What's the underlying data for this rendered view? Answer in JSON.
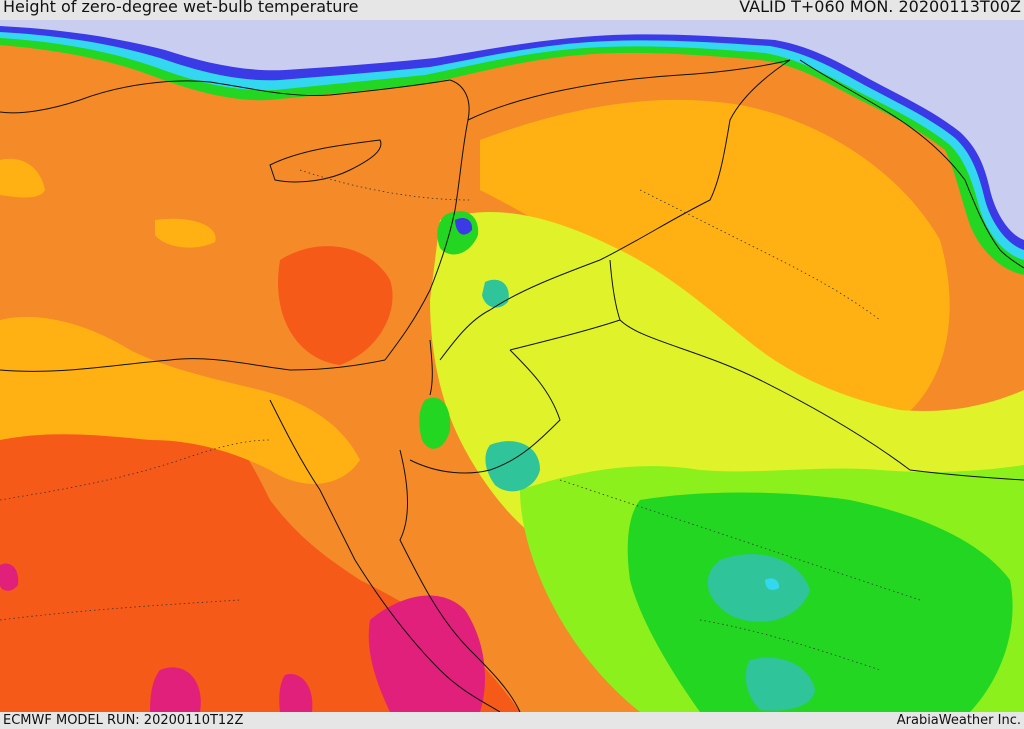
{
  "header": {
    "title": "Height of zero-degree wet-bulb temperature",
    "valid": "VALID T+060 MON. 20200113T00Z"
  },
  "footer": {
    "model_run": "ECMWF MODEL RUN: 20200110T12Z",
    "credit": "ArabiaWeather Inc."
  },
  "colors": {
    "sea_low": "#c9cdf0",
    "blue": "#3a3ae6",
    "cyan": "#33d8f0",
    "teal": "#2fc49a",
    "green": "#22d622",
    "light_green": "#8cf01c",
    "yellow_green": "#dff22a",
    "light_orange": "#ffb114",
    "orange": "#f58a28",
    "red_orange": "#f55a18",
    "magenta": "#e0207a",
    "border": "#111111"
  }
}
